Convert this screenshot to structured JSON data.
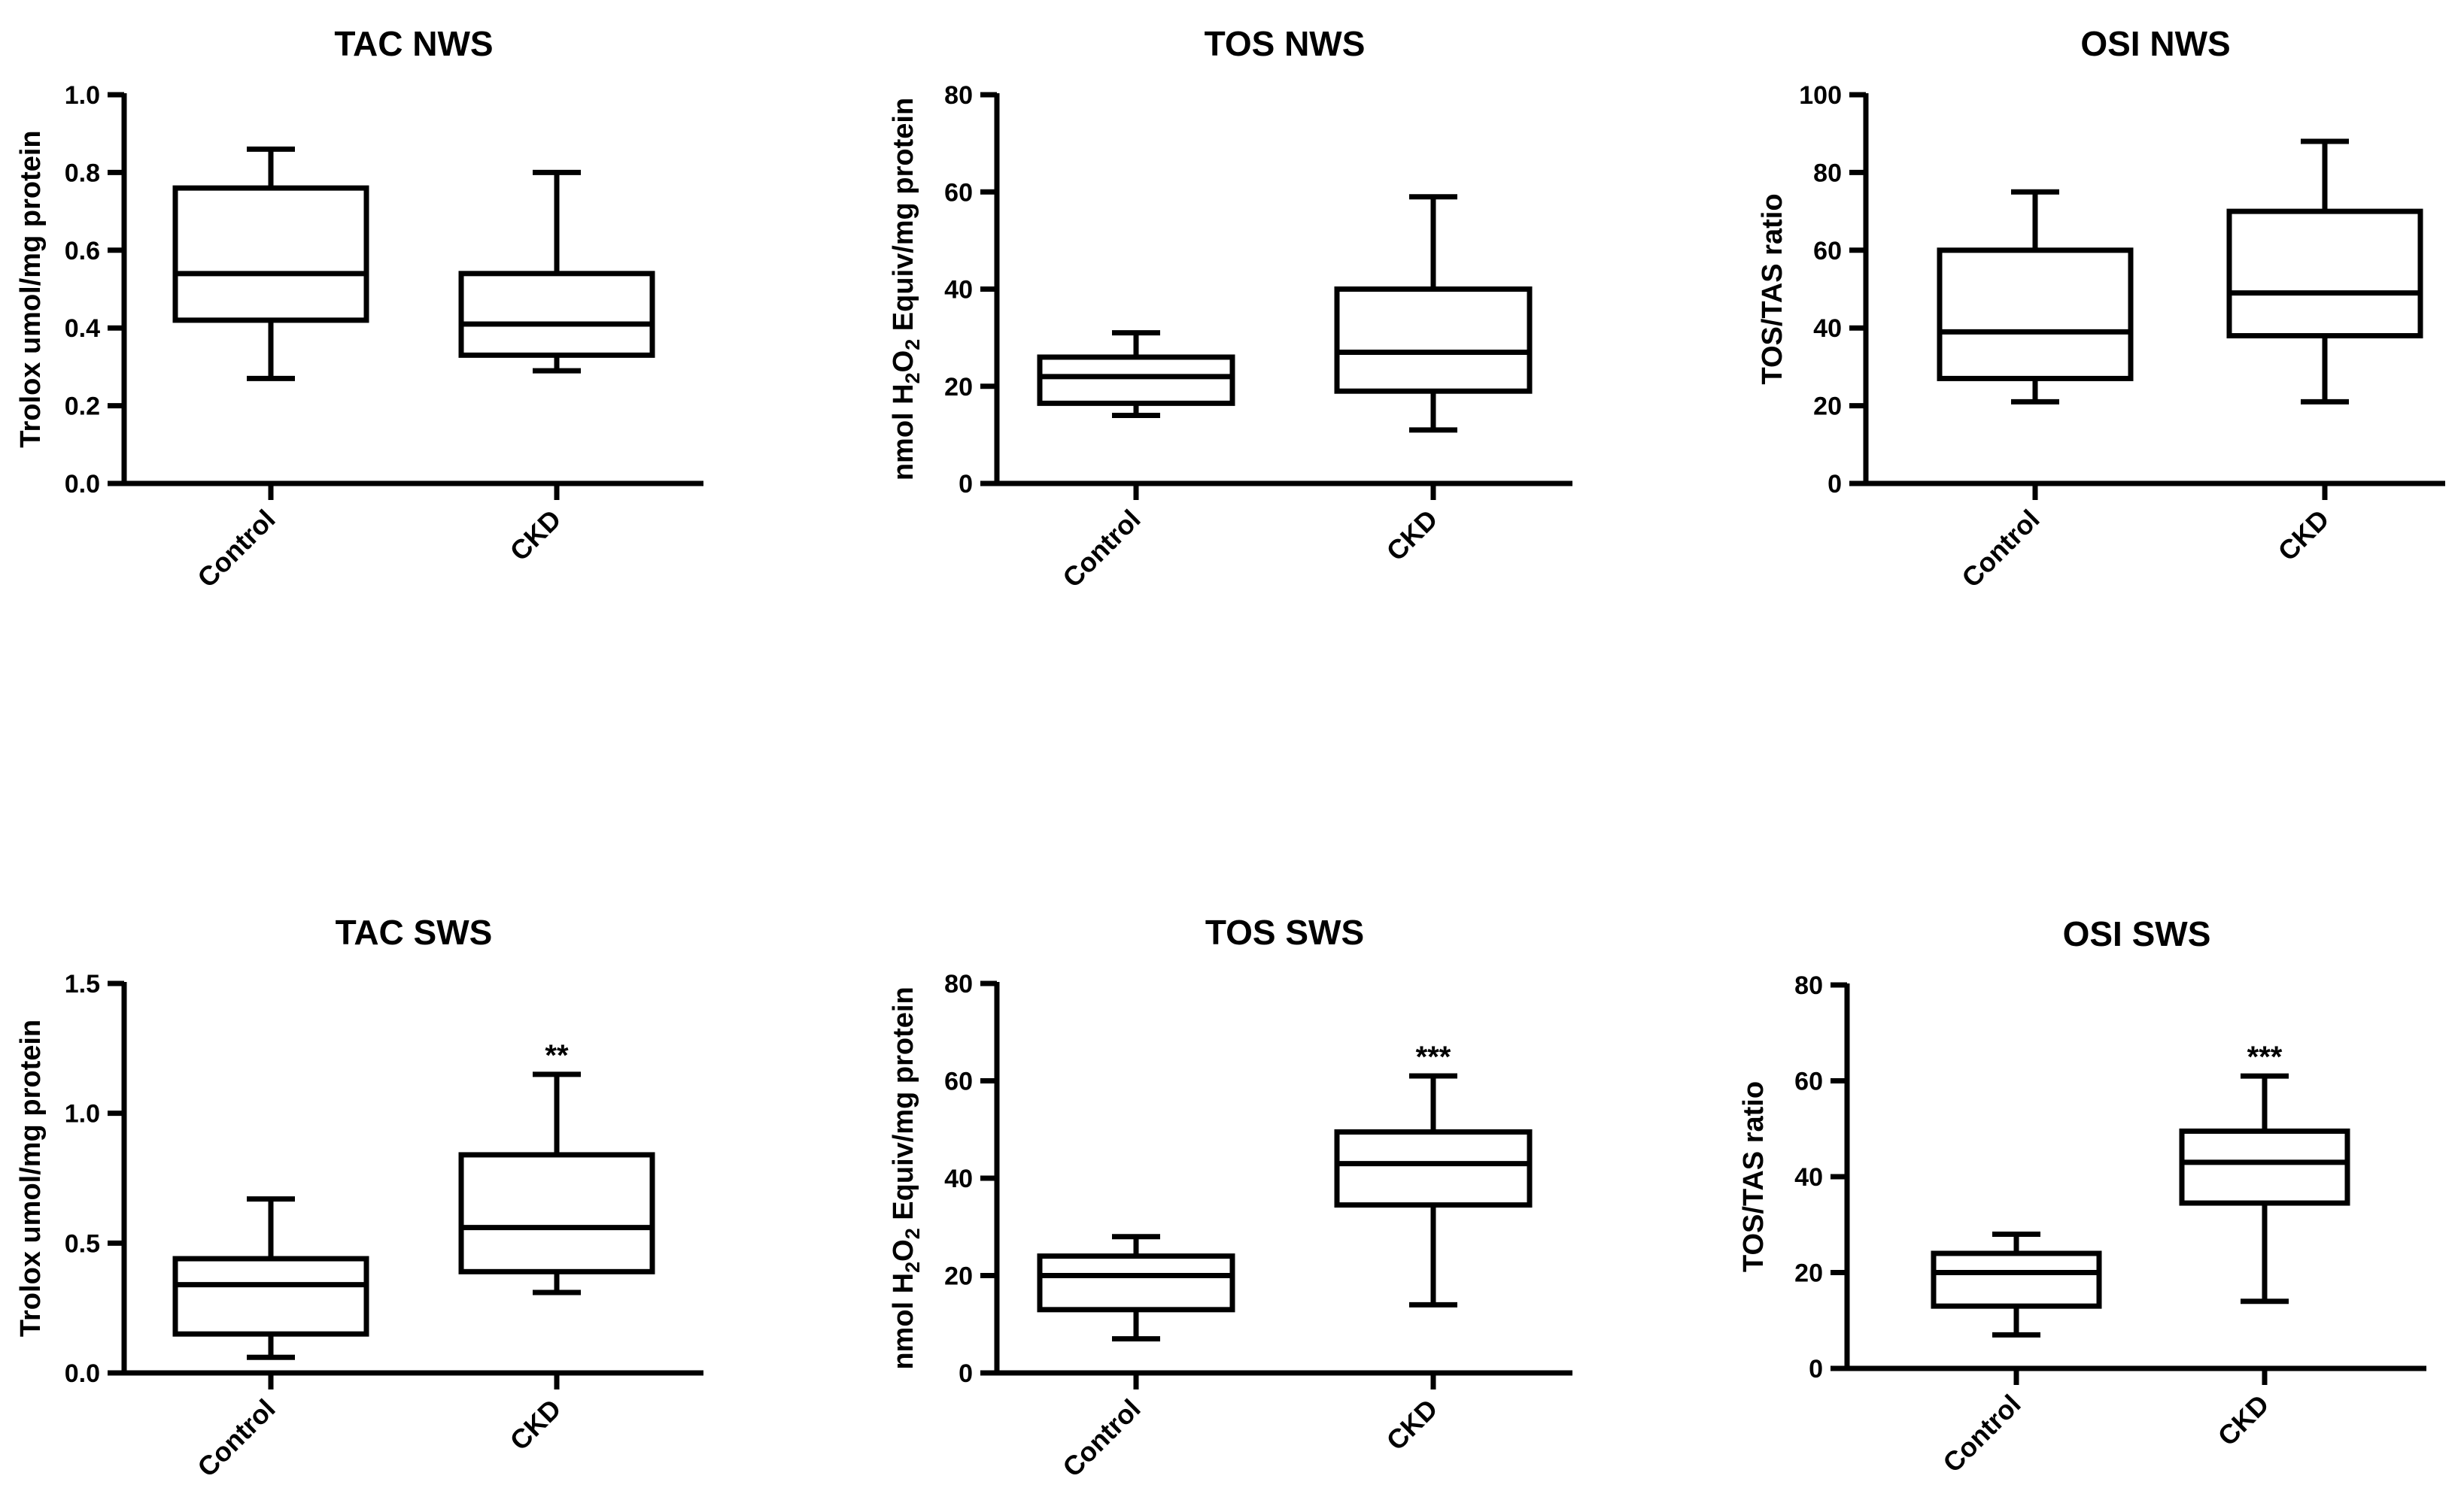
{
  "chart_data": [
    {
      "type": "box",
      "title": "TAC NWS",
      "ylabel": "Trolox umol/mg protein",
      "ylim": [
        0,
        1.0
      ],
      "yticks": [
        "0.0",
        "0.2",
        "0.4",
        "0.6",
        "0.8",
        "1.0"
      ],
      "categories": [
        "Control",
        "CKD"
      ],
      "boxes": [
        {
          "group": "Control",
          "min": 0.27,
          "q1": 0.42,
          "median": 0.54,
          "q3": 0.76,
          "max": 0.86,
          "sig": ""
        },
        {
          "group": "CKD",
          "min": 0.29,
          "q1": 0.33,
          "median": 0.41,
          "q3": 0.54,
          "max": 0.8,
          "sig": ""
        }
      ]
    },
    {
      "type": "box",
      "title": "TOS NWS",
      "ylabel": "nmol H2O2 Equiv/mg protein",
      "ylabel_parts": [
        "nmol H",
        "2",
        "O",
        "2",
        " Equiv/mg protein"
      ],
      "ylim": [
        0,
        80
      ],
      "yticks": [
        "0",
        "20",
        "40",
        "60",
        "80"
      ],
      "categories": [
        "Control",
        "CKD"
      ],
      "boxes": [
        {
          "group": "Control",
          "min": 14,
          "q1": 16.5,
          "median": 22,
          "q3": 26,
          "max": 31,
          "sig": ""
        },
        {
          "group": "CKD",
          "min": 11,
          "q1": 19,
          "median": 27,
          "q3": 40,
          "max": 59,
          "sig": ""
        }
      ]
    },
    {
      "type": "box",
      "title": "OSI NWS",
      "ylabel": "TOS/TAS ratio",
      "ylim": [
        0,
        100
      ],
      "yticks": [
        "0",
        "20",
        "40",
        "60",
        "80",
        "100"
      ],
      "categories": [
        "Control",
        "CKD"
      ],
      "boxes": [
        {
          "group": "Control",
          "min": 21,
          "q1": 27,
          "median": 39,
          "q3": 60,
          "max": 75,
          "sig": ""
        },
        {
          "group": "CKD",
          "min": 21,
          "q1": 38,
          "median": 49,
          "q3": 70,
          "max": 88,
          "sig": ""
        }
      ]
    },
    {
      "type": "box",
      "title": "TAC SWS",
      "ylabel": "Trolox umol/mg protein",
      "ylim": [
        0,
        1.5
      ],
      "yticks": [
        "0.0",
        "0.5",
        "1.0",
        "1.5"
      ],
      "categories": [
        "Control",
        "CKD"
      ],
      "boxes": [
        {
          "group": "Control",
          "min": 0.06,
          "q1": 0.15,
          "median": 0.34,
          "q3": 0.44,
          "max": 0.67,
          "sig": ""
        },
        {
          "group": "CKD",
          "min": 0.31,
          "q1": 0.39,
          "median": 0.56,
          "q3": 0.84,
          "max": 1.15,
          "sig": "**"
        }
      ]
    },
    {
      "type": "box",
      "title": "TOS SWS",
      "ylabel": "nmol H2O2 Equiv/mg protein",
      "ylabel_parts": [
        "nmol H",
        "2",
        "O",
        "2",
        " Equiv/mg protein"
      ],
      "ylim": [
        0,
        80
      ],
      "yticks": [
        "0",
        "20",
        "40",
        "60",
        "80"
      ],
      "categories": [
        "Control",
        "CKD"
      ],
      "boxes": [
        {
          "group": "Control",
          "min": 7,
          "q1": 13,
          "median": 20,
          "q3": 24,
          "max": 28,
          "sig": ""
        },
        {
          "group": "CKD",
          "min": 14,
          "q1": 34.5,
          "median": 43,
          "q3": 49.5,
          "max": 61,
          "sig": "***"
        }
      ]
    },
    {
      "type": "box",
      "title": "OSI SWS",
      "ylabel": "TOS/TAS ratio",
      "ylim": [
        0,
        80
      ],
      "yticks": [
        "0",
        "20",
        "40",
        "60",
        "80"
      ],
      "categories": [
        "Control",
        "CKD"
      ],
      "boxes": [
        {
          "group": "Control",
          "min": 7,
          "q1": 13,
          "median": 20,
          "q3": 24,
          "max": 28,
          "sig": ""
        },
        {
          "group": "CKD",
          "min": 14,
          "q1": 34.5,
          "median": 43,
          "q3": 49.5,
          "max": 61,
          "sig": "***"
        }
      ]
    }
  ]
}
